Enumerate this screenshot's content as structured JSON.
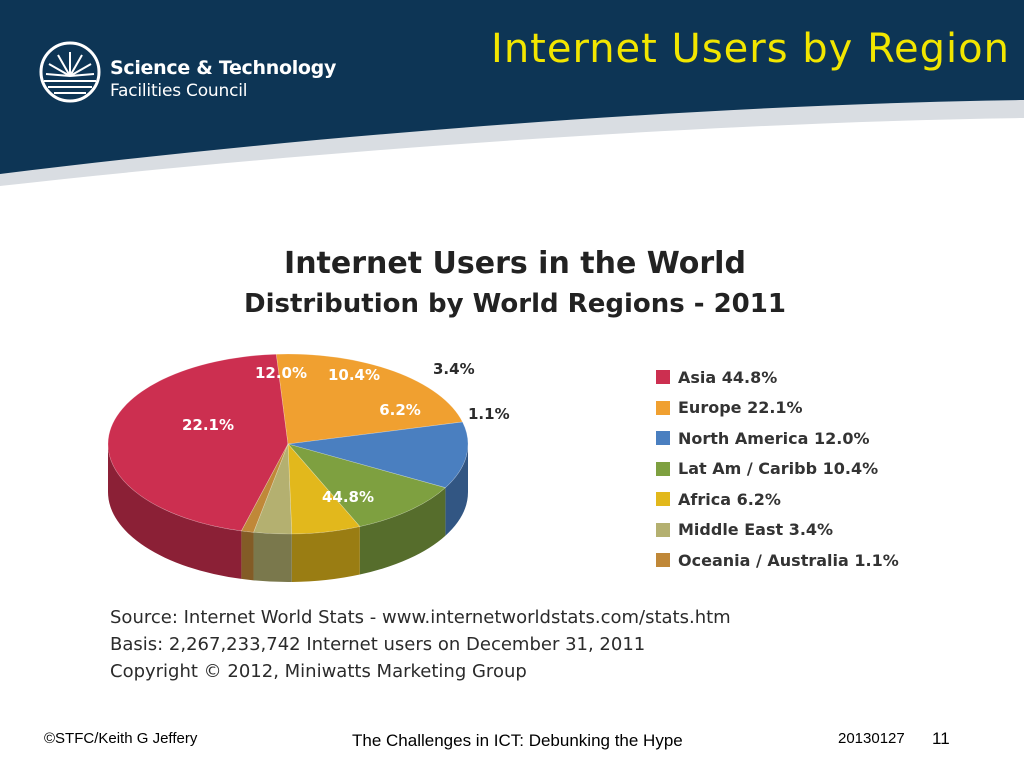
{
  "slide": {
    "title": "Internet Users by Region",
    "logo_line1": "Science & Technology",
    "logo_line2": "Facilities Council",
    "footer_left": "©STFC/Keith G Jeffery",
    "footer_center": "The Challenges in ICT: Debunking the Hype",
    "footer_date": "20130127",
    "page_number": "11",
    "colors": {
      "header_bg": "#0d3555",
      "title": "#f2e600",
      "swoosh": "#d9dde2"
    }
  },
  "chart_data": {
    "type": "pie",
    "title": "Internet Users in the World",
    "subtitle": "Distribution by World Regions - 2011",
    "categories": [
      "Asia",
      "Europe",
      "North America",
      "Lat Am / Caribb",
      "Africa",
      "Middle East",
      "Oceania / Australia"
    ],
    "values": [
      44.8,
      22.1,
      12.0,
      10.4,
      6.2,
      3.4,
      1.1
    ],
    "slice_labels": [
      "44.8%",
      "22.1%",
      "12.0%",
      "10.4%",
      "6.2%",
      "3.4%",
      "1.1%"
    ],
    "legend_labels": [
      "Asia  44.8%",
      "Europe  22.1%",
      "North America  12.0%",
      "Lat Am / Caribb  10.4%",
      "Africa  6.2%",
      "Middle East  3.4%",
      "Oceania / Australia  1.1%"
    ],
    "colors": [
      "#cc2f50",
      "#f0a030",
      "#4a7fc0",
      "#7ea040",
      "#e2b81c",
      "#b4b070",
      "#c08838"
    ],
    "legend": "right",
    "source_lines": [
      "Source: Internet World Stats -  www.internetworldstats.com/stats.htm",
      "Basis: 2,267,233,742 Internet users on December 31, 2011",
      "Copyright © 2012, Miniwatts Marketing Group"
    ]
  }
}
